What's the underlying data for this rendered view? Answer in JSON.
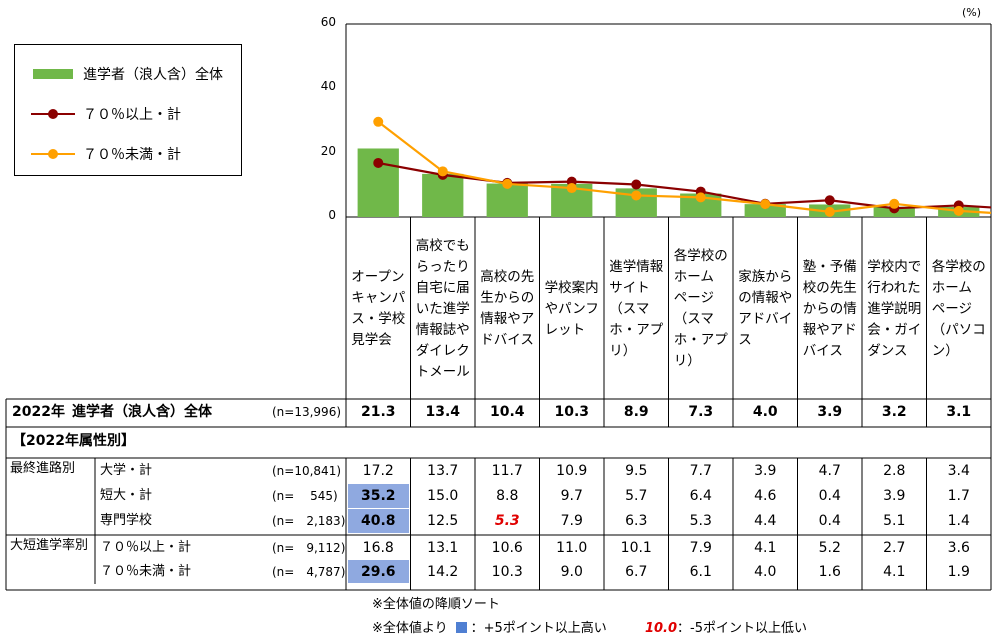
{
  "chart_data": {
    "type": "bar",
    "unit_label": "(%)",
    "ylim": [
      0,
      60
    ],
    "yticks": [
      0,
      20,
      40,
      60
    ],
    "categories": [
      "オープン\nキャンパ\nス・学校\n見学会",
      "高校でも\nらったり\n自宅に届\nいた進学\n情報誌や\nダイレク\nトメール",
      "高校の先\n生からの\n情報やア\nドバイス",
      "学校案内\nやパンフ\nレット",
      "進学情報\nサイト\n（スマ\nホ・アプ\nリ）",
      "各学校の\nホーム\nページ\n（スマ\nホ・アプ\nリ）",
      "家族から\nの情報や\nアドバイ\nス",
      "塾・予備\n校の先生\nからの情\n報やアド\nバイス",
      "学校内で\n行われた\n進学説明\n会・ガイ\nダンス",
      "各学校の\nホーム\nページ\n（パソコ\nン）"
    ],
    "series": [
      {
        "name": "進学者（浪人含）全体",
        "kind": "bar",
        "color": "#70b849",
        "values": [
          21.3,
          13.4,
          10.4,
          10.3,
          8.9,
          7.3,
          4.0,
          3.9,
          3.2,
          3.1
        ]
      },
      {
        "name": "７０％以上・計",
        "kind": "line",
        "color": "#8b0000",
        "values": [
          16.8,
          13.1,
          10.6,
          11.0,
          10.1,
          7.9,
          4.1,
          5.2,
          2.7,
          3.6
        ]
      },
      {
        "name": "７０％未満・計",
        "kind": "line",
        "color": "#ffa000",
        "values": [
          29.6,
          14.2,
          10.3,
          9.0,
          6.7,
          6.1,
          4.0,
          1.6,
          4.1,
          1.9
        ]
      }
    ]
  },
  "table": {
    "total": {
      "year": "2022年",
      "label": "進学者（浪人含）全体",
      "n": "(n=13,996)",
      "values": [
        "21.3",
        "13.4",
        "10.4",
        "10.3",
        "8.9",
        "7.3",
        "4.0",
        "3.9",
        "3.2",
        "3.1"
      ]
    },
    "section_title": "【2022年属性別】",
    "groups": [
      {
        "name": "最終進路別",
        "rows": [
          {
            "label": "大学・計",
            "n": "(n=10,841)",
            "values": [
              "17.2",
              "13.7",
              "11.7",
              "10.9",
              "9.5",
              "7.7",
              "3.9",
              "4.7",
              "2.8",
              "3.4"
            ],
            "flags": [
              "",
              "",
              "",
              "",
              "",
              "",
              "",
              "",
              "",
              ""
            ]
          },
          {
            "label": "短大・計",
            "n": "(n=　 545)",
            "values": [
              "35.2",
              "15.0",
              "8.8",
              "9.7",
              "5.7",
              "6.4",
              "4.6",
              "0.4",
              "3.9",
              "1.7"
            ],
            "flags": [
              "high",
              "",
              "",
              "",
              "",
              "",
              "",
              "",
              "",
              ""
            ]
          },
          {
            "label": "専門学校",
            "n": "(n=　2,183)",
            "values": [
              "40.8",
              "12.5",
              "5.3",
              "7.9",
              "6.3",
              "5.3",
              "4.4",
              "0.4",
              "5.1",
              "1.4"
            ],
            "flags": [
              "high",
              "",
              "low",
              "",
              "",
              "",
              "",
              "",
              "",
              ""
            ]
          }
        ]
      },
      {
        "name": "大短進学率別",
        "rows": [
          {
            "label": "７０％以上・計",
            "n": "(n=　9,112)",
            "values": [
              "16.8",
              "13.1",
              "10.6",
              "11.0",
              "10.1",
              "7.9",
              "4.1",
              "5.2",
              "2.7",
              "3.6"
            ],
            "flags": [
              "",
              "",
              "",
              "",
              "",
              "",
              "",
              "",
              "",
              ""
            ]
          },
          {
            "label": "７０％未満・計",
            "n": "(n=　4,787)",
            "values": [
              "29.6",
              "14.2",
              "10.3",
              "9.0",
              "6.7",
              "6.1",
              "4.0",
              "1.6",
              "4.1",
              "1.9"
            ],
            "flags": [
              "high",
              "",
              "",
              "",
              "",
              "",
              "",
              "",
              "",
              ""
            ]
          }
        ]
      }
    ]
  },
  "notes": {
    "sort_note": "※全体値の降順ソート",
    "compare_prefix": "※全体値より",
    "high_text": "：+5ポイント以上高い",
    "low_sample": "10.0",
    "low_text": "：-5ポイント以上低い"
  }
}
